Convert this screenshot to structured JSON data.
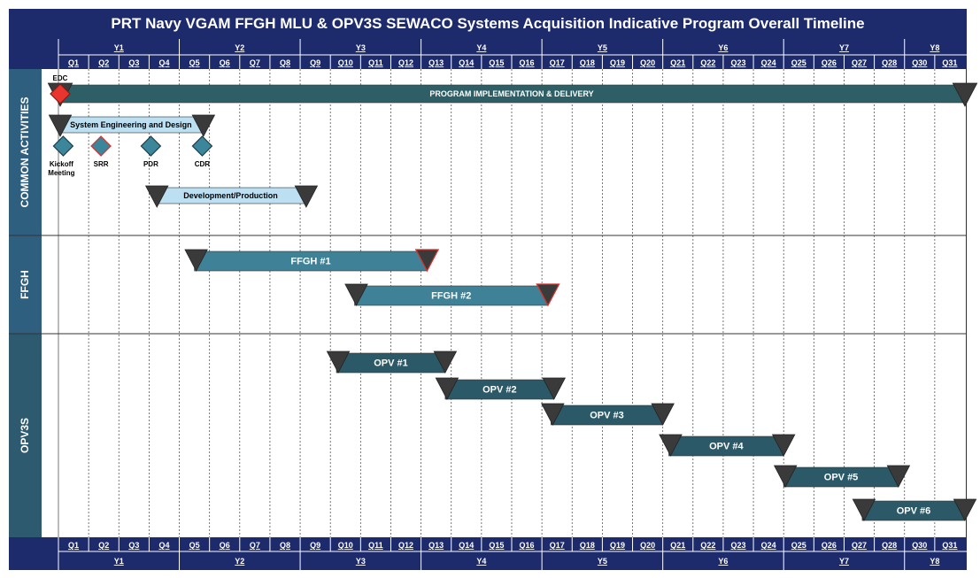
{
  "title": "PRT Navy VGAM FFGH MLU & OPV3S SEWACO Systems Acquisition Indicative Program Overall Timeline",
  "colors": {
    "header_bg": "#1d2a6b",
    "common_label_bg": "#2f5f7f",
    "opv_label_bg": "#2d5a6e",
    "program_bar": "#2e5f66",
    "light_bar": "#bcdff2",
    "ffgh_bar": "#3f8297",
    "opv_bar": "#2b5967",
    "triangle": "#3a3a3a",
    "red_triangle_border": "#d9302c",
    "milestone_red": "#e8352e",
    "milestone_blue": "#3c869b"
  },
  "chart_data": {
    "type": "gantt",
    "quarters": [
      "Q1",
      "Q2",
      "Q3",
      "Q4",
      "Q5",
      "Q6",
      "Q7",
      "Q8",
      "Q9",
      "Q10",
      "Q11",
      "Q12",
      "Q13",
      "Q14",
      "Q15",
      "Q16",
      "Q17",
      "Q18",
      "Q19",
      "Q20",
      "Q21",
      "Q22",
      "Q23",
      "Q24",
      "Q25",
      "Q26",
      "Q27",
      "Q28",
      "Q30",
      "Q31"
    ],
    "years": [
      {
        "label": "Y1",
        "start": 0,
        "span": 4
      },
      {
        "label": "Y2",
        "start": 4,
        "span": 4
      },
      {
        "label": "Y3",
        "start": 8,
        "span": 4
      },
      {
        "label": "Y4",
        "start": 12,
        "span": 4
      },
      {
        "label": "Y5",
        "start": 16,
        "span": 4
      },
      {
        "label": "Y6",
        "start": 20,
        "span": 4
      },
      {
        "label": "Y7",
        "start": 24,
        "span": 4
      },
      {
        "label": "Y8",
        "start": 28,
        "span": 2
      }
    ],
    "sections": [
      {
        "label": "COMMON ACTIVITIES",
        "rows": 5
      },
      {
        "label": "FFGH",
        "rows": 2
      },
      {
        "label": "OPV3S",
        "rows": 6
      }
    ],
    "milestones": [
      {
        "label": "EDC",
        "quarter": 0.0,
        "style": "red",
        "label_pos": "above"
      },
      {
        "label": "Kickoff Meeting",
        "quarter": 0.1,
        "style": "blue",
        "label_pos": "below"
      },
      {
        "label": "SRR",
        "quarter": 1.35,
        "style": "blue-red",
        "label_pos": "below"
      },
      {
        "label": "PDR",
        "quarter": 3.0,
        "style": "blue",
        "label_pos": "below"
      },
      {
        "label": "CDR",
        "quarter": 4.7,
        "style": "blue",
        "label_pos": "below"
      }
    ],
    "tasks": [
      {
        "label": "PROGRAM IMPLEMENTATION & DELIVERY",
        "section": "COMMON ACTIVITIES",
        "start": 0.0,
        "end": 30.0,
        "style": "program"
      },
      {
        "label": "System Engineering and Design",
        "section": "COMMON ACTIVITIES",
        "start": 0.0,
        "end": 4.8,
        "style": "light"
      },
      {
        "label": "Development/Production",
        "section": "COMMON ACTIVITIES",
        "start": 3.2,
        "end": 8.2,
        "style": "light"
      },
      {
        "label": "FFGH #1",
        "section": "FFGH",
        "start": 4.5,
        "end": 12.2,
        "style": "ffgh"
      },
      {
        "label": "FFGH #2",
        "section": "FFGH",
        "start": 9.8,
        "end": 16.2,
        "style": "ffgh"
      },
      {
        "label": "OPV #1",
        "section": "OPV3S",
        "start": 9.2,
        "end": 12.8,
        "style": "opv"
      },
      {
        "label": "OPV #2",
        "section": "OPV3S",
        "start": 12.8,
        "end": 16.4,
        "style": "opv"
      },
      {
        "label": "OPV #3",
        "section": "OPV3S",
        "start": 16.3,
        "end": 20.0,
        "style": "opv"
      },
      {
        "label": "OPV #4",
        "section": "OPV3S",
        "start": 20.2,
        "end": 24.0,
        "style": "opv"
      },
      {
        "label": "OPV #5",
        "section": "OPV3S",
        "start": 24.0,
        "end": 27.8,
        "style": "opv"
      },
      {
        "label": "OPV #6",
        "section": "OPV3S",
        "start": 26.6,
        "end": 30.0,
        "style": "opv"
      }
    ]
  }
}
